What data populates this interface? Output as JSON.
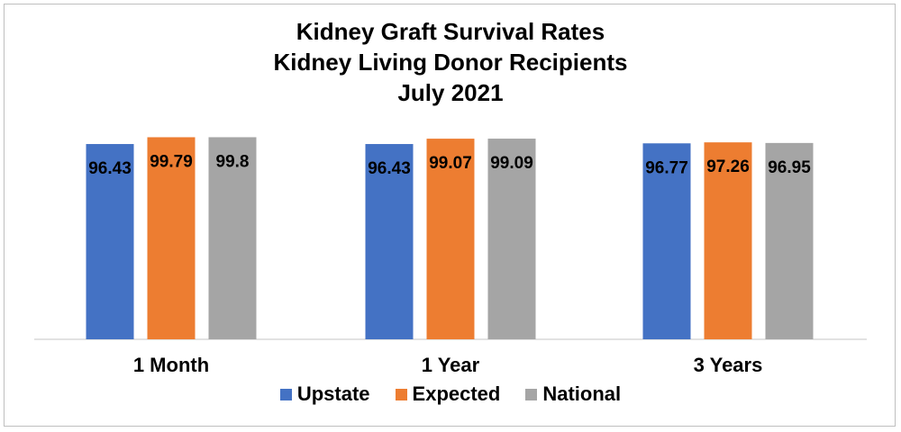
{
  "chart_data": {
    "type": "bar",
    "title": [
      "Kidney Graft Survival Rates",
      "Kidney Living Donor Recipients",
      "July 2021"
    ],
    "categories": [
      "1 Month",
      "1 Year",
      "3 Years"
    ],
    "series": [
      {
        "name": "Upstate",
        "color": "#4472C4",
        "values": [
          96.43,
          96.43,
          96.77
        ]
      },
      {
        "name": "Expected",
        "color": "#ED7D31",
        "values": [
          99.79,
          99.07,
          97.26
        ]
      },
      {
        "name": "National",
        "color": "#A5A5A5",
        "values": [
          99.8,
          99.09,
          96.95
        ]
      }
    ],
    "value_labels": [
      [
        "96.43",
        "96.43",
        "96.77"
      ],
      [
        "99.79",
        "99.07",
        "97.26"
      ],
      [
        "99.8",
        "99.09",
        "96.95"
      ]
    ],
    "ylim": [
      0,
      100
    ],
    "xlabel": "",
    "ylabel": "",
    "grid": false,
    "legend_position": "bottom"
  }
}
